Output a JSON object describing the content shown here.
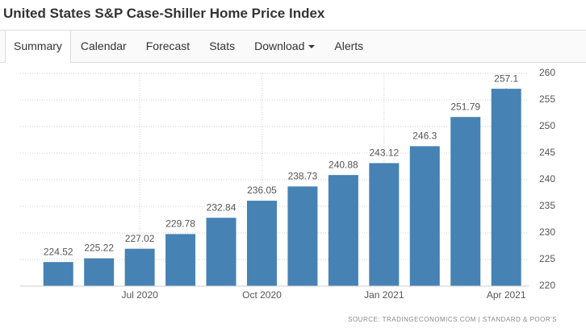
{
  "title": "United States S&P Case-Shiller Home Price Index",
  "tabs": [
    "Summary",
    "Calendar",
    "Forecast",
    "Stats",
    "Download",
    "Alerts"
  ],
  "source": "SOURCE: TRADINGECONOMICS.COM  |  STANDARD & POOR'S",
  "chart_data": {
    "type": "bar",
    "categories": [
      null,
      null,
      "Jul 2020",
      null,
      null,
      "Oct 2020",
      null,
      null,
      "Jan 2021",
      null,
      null,
      "Apr 2021"
    ],
    "values": [
      224.52,
      225.22,
      227.02,
      229.78,
      232.84,
      236.05,
      238.73,
      240.88,
      243.12,
      246.3,
      251.79,
      257.1
    ],
    "color": "#4682b4",
    "ylim": [
      220,
      260
    ],
    "yticks": [
      220,
      225,
      230,
      235,
      240,
      245,
      250,
      255,
      260
    ],
    "grid": true
  }
}
